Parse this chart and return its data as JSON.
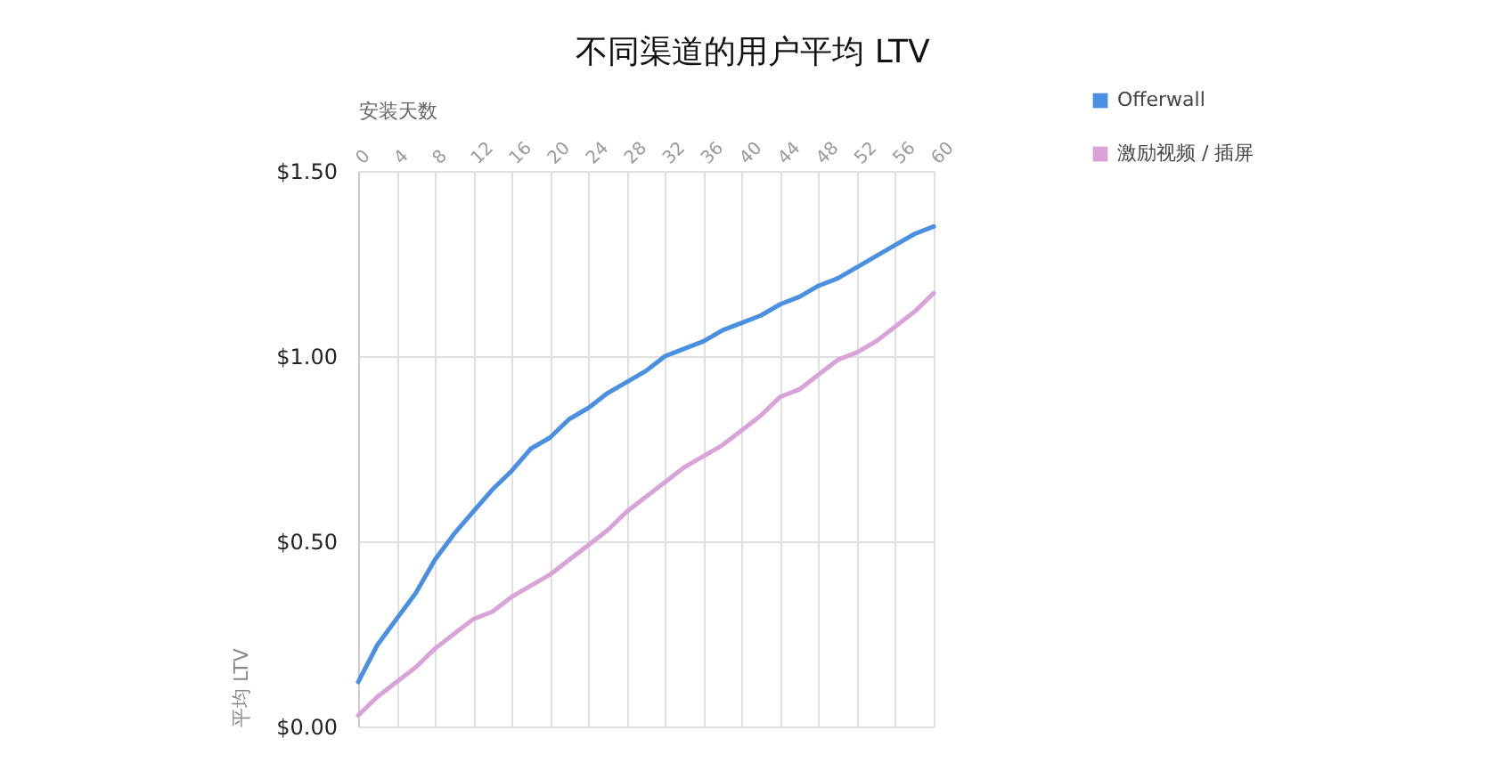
{
  "chart_data": {
    "type": "line",
    "title": "不同渠道的用户平均 LTV",
    "xlabel": "安装天数",
    "ylabel": "平均 LTV",
    "x": [
      0,
      2,
      4,
      6,
      8,
      10,
      12,
      14,
      16,
      18,
      20,
      22,
      24,
      26,
      28,
      30,
      32,
      34,
      36,
      38,
      40,
      42,
      44,
      46,
      48,
      50,
      52,
      54,
      56,
      58,
      60
    ],
    "series": [
      {
        "name": "Offerwall",
        "color": "#4a90e2",
        "values": [
          0.12,
          0.22,
          0.29,
          0.36,
          0.45,
          0.52,
          0.58,
          0.64,
          0.69,
          0.75,
          0.78,
          0.83,
          0.86,
          0.9,
          0.93,
          0.96,
          1.0,
          1.02,
          1.04,
          1.07,
          1.09,
          1.11,
          1.14,
          1.16,
          1.19,
          1.21,
          1.24,
          1.27,
          1.3,
          1.33,
          1.35
        ]
      },
      {
        "name": "激励视频 / 插屏",
        "color": "#d9a3d8",
        "values": [
          0.03,
          0.08,
          0.12,
          0.16,
          0.21,
          0.25,
          0.29,
          0.31,
          0.35,
          0.38,
          0.41,
          0.45,
          0.49,
          0.53,
          0.58,
          0.62,
          0.66,
          0.7,
          0.73,
          0.76,
          0.8,
          0.84,
          0.89,
          0.91,
          0.95,
          0.99,
          1.01,
          1.04,
          1.08,
          1.12,
          1.17
        ]
      }
    ],
    "xlim": [
      0,
      60
    ],
    "xticks": [
      0,
      4,
      8,
      12,
      16,
      20,
      24,
      28,
      32,
      36,
      40,
      44,
      48,
      52,
      56,
      60
    ],
    "ylim": [
      0,
      1.5
    ],
    "yticks": [
      {
        "value": 0,
        "label": "$0.00"
      },
      {
        "value": 0.5,
        "label": "$0.50"
      },
      {
        "value": 1,
        "label": "$1.00"
      },
      {
        "value": 1.5,
        "label": "$1.50"
      }
    ],
    "grid": true,
    "legend": "right",
    "line_style": "solid",
    "marker": "none"
  }
}
